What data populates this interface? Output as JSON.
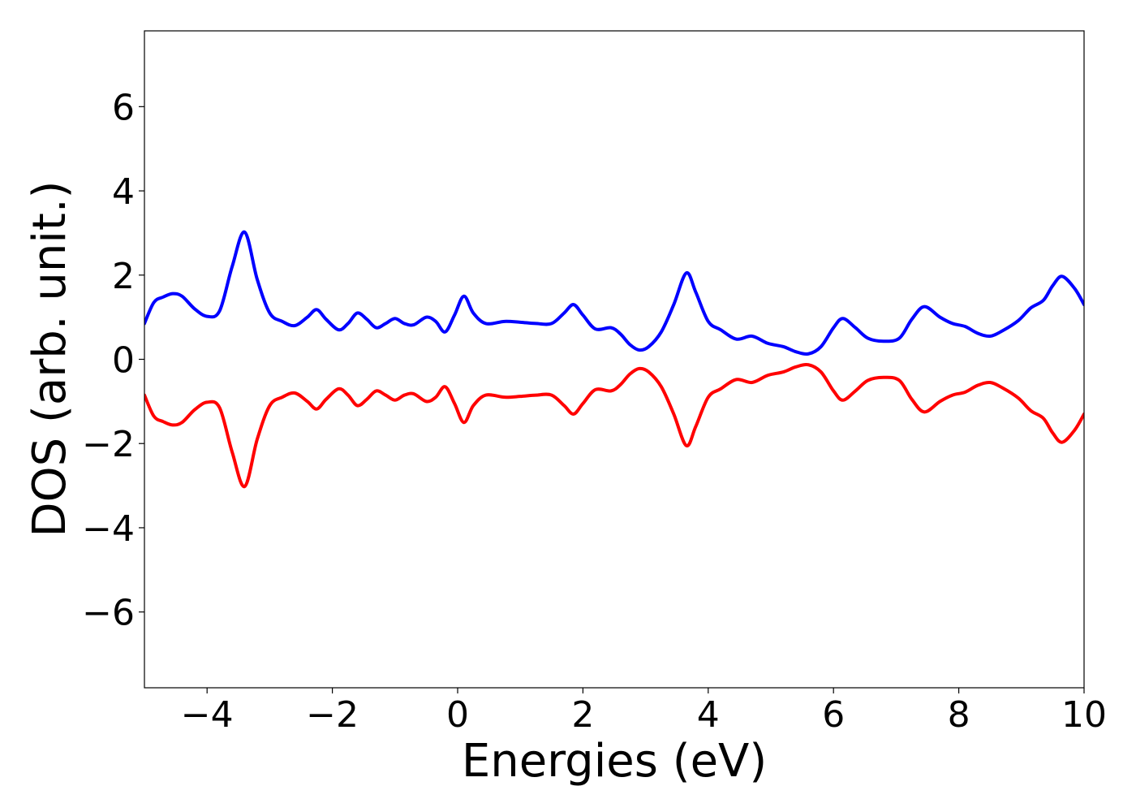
{
  "chart_data": {
    "type": "line",
    "xlabel": "Energies (eV)",
    "ylabel": "DOS (arb. unit.)",
    "xlim": [
      -5,
      10
    ],
    "ylim": [
      -7.8,
      7.8
    ],
    "x_ticks": [
      -4,
      -2,
      0,
      2,
      4,
      6,
      8,
      10
    ],
    "x_tick_labels": [
      "−4",
      "−2",
      "0",
      "2",
      "4",
      "6",
      "8",
      "10"
    ],
    "y_ticks": [
      -6,
      -4,
      -2,
      0,
      2,
      4,
      6
    ],
    "y_tick_labels": [
      "−6",
      "−4",
      "−2",
      "0",
      "2",
      "4",
      "6"
    ],
    "grid": false,
    "legend": "none",
    "series": [
      {
        "color": "#0000ff",
        "points": [
          [
            -5.0,
            0.85
          ],
          [
            -4.85,
            1.35
          ],
          [
            -4.7,
            1.48
          ],
          [
            -4.55,
            1.56
          ],
          [
            -4.4,
            1.5
          ],
          [
            -4.2,
            1.2
          ],
          [
            -4.0,
            1.02
          ],
          [
            -3.8,
            1.15
          ],
          [
            -3.6,
            2.2
          ],
          [
            -3.4,
            3.02
          ],
          [
            -3.2,
            1.9
          ],
          [
            -3.0,
            1.1
          ],
          [
            -2.8,
            0.9
          ],
          [
            -2.6,
            0.8
          ],
          [
            -2.4,
            1.0
          ],
          [
            -2.25,
            1.18
          ],
          [
            -2.1,
            0.95
          ],
          [
            -1.9,
            0.7
          ],
          [
            -1.75,
            0.85
          ],
          [
            -1.6,
            1.1
          ],
          [
            -1.45,
            0.95
          ],
          [
            -1.3,
            0.75
          ],
          [
            -1.15,
            0.85
          ],
          [
            -1.0,
            0.97
          ],
          [
            -0.85,
            0.85
          ],
          [
            -0.7,
            0.82
          ],
          [
            -0.5,
            1.0
          ],
          [
            -0.35,
            0.9
          ],
          [
            -0.2,
            0.65
          ],
          [
            -0.05,
            1.05
          ],
          [
            0.1,
            1.5
          ],
          [
            0.25,
            1.1
          ],
          [
            0.45,
            0.85
          ],
          [
            0.75,
            0.9
          ],
          [
            1.0,
            0.88
          ],
          [
            1.25,
            0.85
          ],
          [
            1.5,
            0.85
          ],
          [
            1.7,
            1.1
          ],
          [
            1.85,
            1.3
          ],
          [
            2.0,
            1.05
          ],
          [
            2.2,
            0.72
          ],
          [
            2.45,
            0.75
          ],
          [
            2.6,
            0.6
          ],
          [
            2.75,
            0.35
          ],
          [
            2.9,
            0.22
          ],
          [
            3.05,
            0.3
          ],
          [
            3.25,
            0.65
          ],
          [
            3.45,
            1.3
          ],
          [
            3.65,
            2.05
          ],
          [
            3.8,
            1.6
          ],
          [
            4.0,
            0.9
          ],
          [
            4.2,
            0.7
          ],
          [
            4.45,
            0.48
          ],
          [
            4.7,
            0.55
          ],
          [
            4.95,
            0.38
          ],
          [
            5.2,
            0.3
          ],
          [
            5.4,
            0.18
          ],
          [
            5.6,
            0.13
          ],
          [
            5.8,
            0.3
          ],
          [
            6.0,
            0.75
          ],
          [
            6.15,
            0.97
          ],
          [
            6.35,
            0.75
          ],
          [
            6.55,
            0.5
          ],
          [
            6.8,
            0.43
          ],
          [
            7.05,
            0.5
          ],
          [
            7.25,
            0.95
          ],
          [
            7.45,
            1.25
          ],
          [
            7.7,
            1.0
          ],
          [
            7.9,
            0.85
          ],
          [
            8.1,
            0.78
          ],
          [
            8.3,
            0.62
          ],
          [
            8.5,
            0.55
          ],
          [
            8.7,
            0.68
          ],
          [
            8.95,
            0.92
          ],
          [
            9.15,
            1.22
          ],
          [
            9.35,
            1.4
          ],
          [
            9.5,
            1.75
          ],
          [
            9.65,
            1.97
          ],
          [
            9.85,
            1.68
          ],
          [
            10.0,
            1.3
          ]
        ]
      },
      {
        "color": "#ff0000",
        "points": [
          [
            -5.0,
            -0.85
          ],
          [
            -4.85,
            -1.35
          ],
          [
            -4.7,
            -1.48
          ],
          [
            -4.55,
            -1.56
          ],
          [
            -4.4,
            -1.5
          ],
          [
            -4.2,
            -1.2
          ],
          [
            -4.0,
            -1.02
          ],
          [
            -3.8,
            -1.15
          ],
          [
            -3.6,
            -2.2
          ],
          [
            -3.4,
            -3.02
          ],
          [
            -3.2,
            -1.9
          ],
          [
            -3.0,
            -1.1
          ],
          [
            -2.8,
            -0.9
          ],
          [
            -2.6,
            -0.8
          ],
          [
            -2.4,
            -1.0
          ],
          [
            -2.25,
            -1.18
          ],
          [
            -2.1,
            -0.95
          ],
          [
            -1.9,
            -0.7
          ],
          [
            -1.75,
            -0.85
          ],
          [
            -1.6,
            -1.1
          ],
          [
            -1.45,
            -0.95
          ],
          [
            -1.3,
            -0.75
          ],
          [
            -1.15,
            -0.85
          ],
          [
            -1.0,
            -0.97
          ],
          [
            -0.85,
            -0.85
          ],
          [
            -0.7,
            -0.82
          ],
          [
            -0.5,
            -1.0
          ],
          [
            -0.35,
            -0.9
          ],
          [
            -0.2,
            -0.65
          ],
          [
            -0.05,
            -1.05
          ],
          [
            0.1,
            -1.5
          ],
          [
            0.25,
            -1.1
          ],
          [
            0.45,
            -0.85
          ],
          [
            0.75,
            -0.9
          ],
          [
            1.0,
            -0.88
          ],
          [
            1.25,
            -0.85
          ],
          [
            1.5,
            -0.85
          ],
          [
            1.7,
            -1.1
          ],
          [
            1.85,
            -1.3
          ],
          [
            2.0,
            -1.05
          ],
          [
            2.2,
            -0.72
          ],
          [
            2.45,
            -0.75
          ],
          [
            2.6,
            -0.6
          ],
          [
            2.75,
            -0.35
          ],
          [
            2.9,
            -0.22
          ],
          [
            3.05,
            -0.3
          ],
          [
            3.25,
            -0.65
          ],
          [
            3.45,
            -1.3
          ],
          [
            3.65,
            -2.05
          ],
          [
            3.8,
            -1.6
          ],
          [
            4.0,
            -0.9
          ],
          [
            4.2,
            -0.7
          ],
          [
            4.45,
            -0.48
          ],
          [
            4.7,
            -0.55
          ],
          [
            4.95,
            -0.38
          ],
          [
            5.2,
            -0.3
          ],
          [
            5.4,
            -0.18
          ],
          [
            5.6,
            -0.13
          ],
          [
            5.8,
            -0.3
          ],
          [
            6.0,
            -0.75
          ],
          [
            6.15,
            -0.97
          ],
          [
            6.35,
            -0.75
          ],
          [
            6.55,
            -0.5
          ],
          [
            6.8,
            -0.43
          ],
          [
            7.05,
            -0.5
          ],
          [
            7.25,
            -0.95
          ],
          [
            7.45,
            -1.25
          ],
          [
            7.7,
            -1.0
          ],
          [
            7.9,
            -0.85
          ],
          [
            8.1,
            -0.78
          ],
          [
            8.3,
            -0.62
          ],
          [
            8.5,
            -0.55
          ],
          [
            8.7,
            -0.68
          ],
          [
            8.95,
            -0.92
          ],
          [
            9.15,
            -1.22
          ],
          [
            9.35,
            -1.4
          ],
          [
            9.5,
            -1.75
          ],
          [
            9.65,
            -1.97
          ],
          [
            9.85,
            -1.68
          ],
          [
            10.0,
            -1.3
          ]
        ]
      }
    ]
  }
}
